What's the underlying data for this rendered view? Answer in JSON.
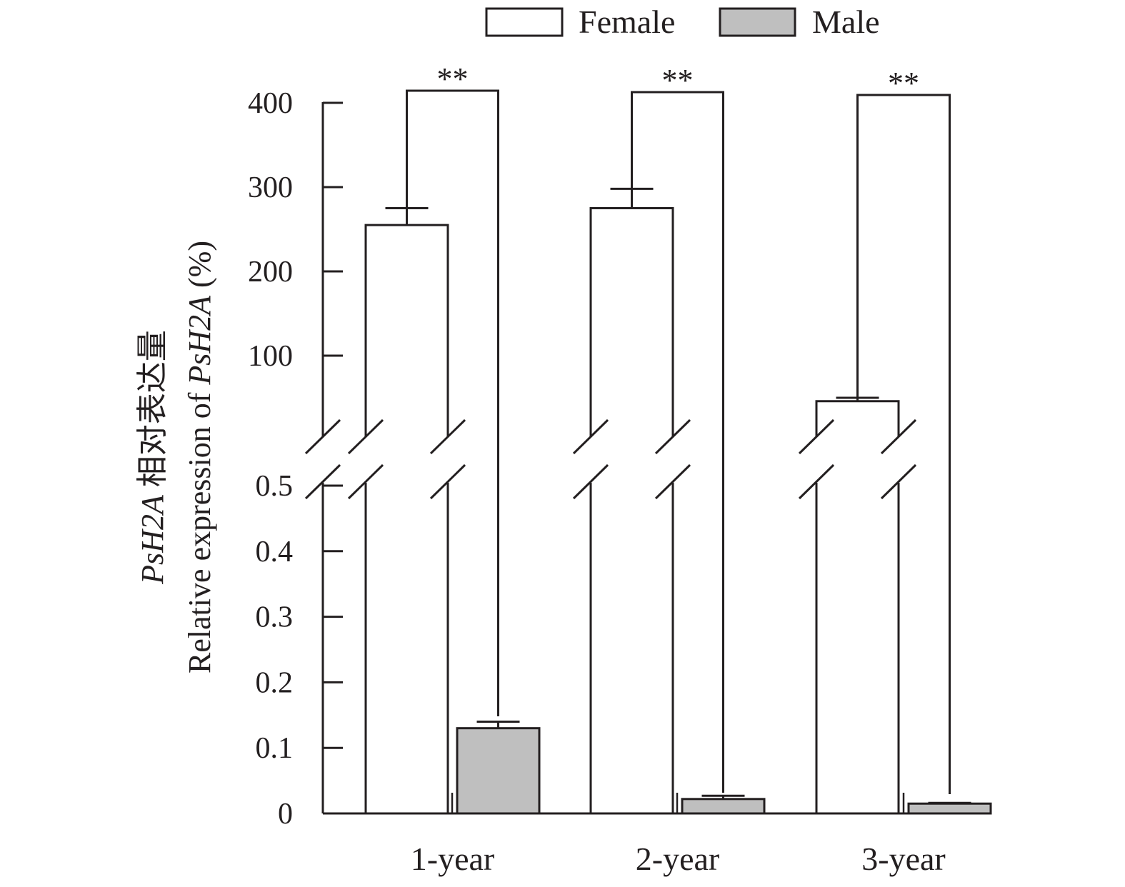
{
  "chart_data": {
    "type": "bar",
    "categories": [
      "1-year",
      "2-year",
      "3-year"
    ],
    "series": [
      {
        "name": "Female",
        "values": [
          255,
          275,
          46
        ],
        "errors": [
          20,
          23,
          4
        ],
        "color": "#ffffff",
        "axis": "upper"
      },
      {
        "name": "Male",
        "values": [
          0.13,
          0.022,
          0.015
        ],
        "errors": [
          0.01,
          0.005,
          0.001
        ],
        "color": "#bfbfbf",
        "axis": "lower"
      }
    ],
    "significance": [
      "**",
      "**",
      "**"
    ],
    "ylabel_cn": "PsH2A 相对表达量",
    "ylabel_cn_italic": "PsH2A",
    "ylabel_cn_rest": " 相对表达量",
    "ylabel_en_prefix": "Relative expression of ",
    "ylabel_en_italic": "PsH2A",
    "ylabel_en_suffix": " (%)",
    "upper_axis": {
      "range": [
        0,
        400
      ],
      "ticks": [
        "100",
        "200",
        "300",
        "400"
      ],
      "tick_values": [
        100,
        200,
        300,
        400
      ]
    },
    "lower_axis": {
      "range": [
        0,
        0.5
      ],
      "ticks": [
        "0",
        "0.1",
        "0.2",
        "0.3",
        "0.4",
        "0.5"
      ],
      "tick_values": [
        0,
        0.1,
        0.2,
        0.3,
        0.4,
        0.5
      ]
    },
    "axis_break": true,
    "legend_position": "top",
    "grid": false
  }
}
